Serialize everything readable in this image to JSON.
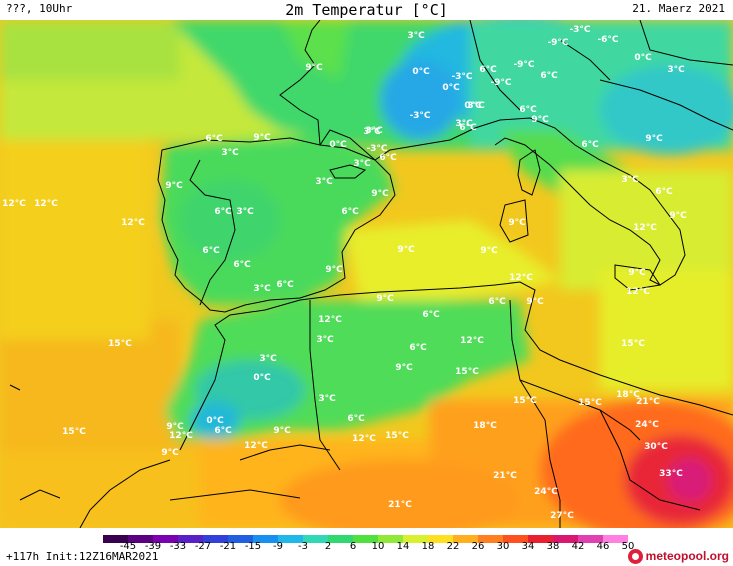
{
  "header": {
    "left": "???, 10Uhr",
    "title": "2m Temperatur [°C]",
    "date": "21. Maerz 2021"
  },
  "footer": {
    "run_info": "+117h Init:12Z16MAR2021",
    "logo": "meteopool.org"
  },
  "scale": {
    "ticks": [
      "-45",
      "-39",
      "-33",
      "-27",
      "-21",
      "-15",
      "-9",
      "-3",
      "2",
      "6",
      "10",
      "14",
      "18",
      "22",
      "26",
      "30",
      "34",
      "38",
      "42",
      "46",
      "50"
    ],
    "colors": [
      "#3a0050",
      "#5a0080",
      "#7a00b0",
      "#5a20c8",
      "#3040d8",
      "#2060e0",
      "#1890f0",
      "#20b8e8",
      "#30d8b8",
      "#30d870",
      "#50e040",
      "#90e838",
      "#d8f030",
      "#ffe020",
      "#ffb020",
      "#ff8020",
      "#ff5020",
      "#e82030",
      "#d81870",
      "#e040b0",
      "#ff80e0"
    ]
  },
  "labels": [
    {
      "text": "3°C"
    },
    {
      "text": "-3°C"
    },
    {
      "text": "-9°C"
    },
    {
      "text": "-6°C"
    },
    {
      "text": "0°C"
    },
    {
      "text": "3°C"
    },
    {
      "text": "9°C"
    },
    {
      "text": "0°C"
    },
    {
      "text": "-3°C"
    },
    {
      "text": "6°C"
    },
    {
      "text": "-9°C"
    },
    {
      "text": "6°C"
    },
    {
      "text": "0°C"
    },
    {
      "text": "-9°C"
    },
    {
      "text": "3°C"
    },
    {
      "text": "6°C"
    },
    {
      "text": "0°C"
    },
    {
      "text": "-3°C"
    },
    {
      "text": "3°C"
    },
    {
      "text": "6°C"
    },
    {
      "text": "3°C"
    },
    {
      "text": "9°C"
    },
    {
      "text": "3°C"
    },
    {
      "text": "0°C"
    },
    {
      "text": "-3°C"
    },
    {
      "text": "9°C"
    },
    {
      "text": "6°C"
    },
    {
      "text": "3°C"
    },
    {
      "text": "3°C"
    },
    {
      "text": "6°C"
    },
    {
      "text": "6°C"
    },
    {
      "text": "9°C"
    },
    {
      "text": "3°C"
    },
    {
      "text": "9°C"
    },
    {
      "text": "3°C"
    },
    {
      "text": "6°C"
    },
    {
      "text": "12°C"
    },
    {
      "text": "12°C"
    },
    {
      "text": "6°C"
    },
    {
      "text": "3°C"
    },
    {
      "text": "6°C"
    },
    {
      "text": "9°C"
    },
    {
      "text": "12°C"
    },
    {
      "text": "9°C"
    },
    {
      "text": "9°C"
    },
    {
      "text": "9°C"
    },
    {
      "text": "6°C"
    },
    {
      "text": "9°C"
    },
    {
      "text": "12°C"
    },
    {
      "text": "9°C"
    },
    {
      "text": "12°C"
    },
    {
      "text": "9°C"
    },
    {
      "text": "6°C"
    },
    {
      "text": "3°C"
    },
    {
      "text": "12°C"
    },
    {
      "text": "9°C"
    },
    {
      "text": "6°C"
    },
    {
      "text": "6°C"
    },
    {
      "text": "12°C"
    },
    {
      "text": "6°C"
    },
    {
      "text": "9°C"
    },
    {
      "text": "15°C"
    },
    {
      "text": "3°C"
    },
    {
      "text": "12°C"
    },
    {
      "text": "3°C"
    },
    {
      "text": "6°C"
    },
    {
      "text": "15°C"
    },
    {
      "text": "0°C"
    },
    {
      "text": "9°C"
    },
    {
      "text": "15°C"
    },
    {
      "text": "15°C"
    },
    {
      "text": "15°C"
    },
    {
      "text": "18°C"
    },
    {
      "text": "21°C"
    },
    {
      "text": "3°C"
    },
    {
      "text": "6°C"
    },
    {
      "text": "9°C"
    },
    {
      "text": "0°C"
    },
    {
      "text": "18°C"
    },
    {
      "text": "24°C"
    },
    {
      "text": "9°C"
    },
    {
      "text": "12°C"
    },
    {
      "text": "6°C"
    },
    {
      "text": "12°C"
    },
    {
      "text": "15°C"
    },
    {
      "text": "30°C"
    },
    {
      "text": "12°C"
    },
    {
      "text": "15°C"
    },
    {
      "text": "9°C"
    },
    {
      "text": "21°C"
    },
    {
      "text": "33°C"
    },
    {
      "text": "24°C"
    },
    {
      "text": "21°C"
    },
    {
      "text": "27°C"
    }
  ]
}
